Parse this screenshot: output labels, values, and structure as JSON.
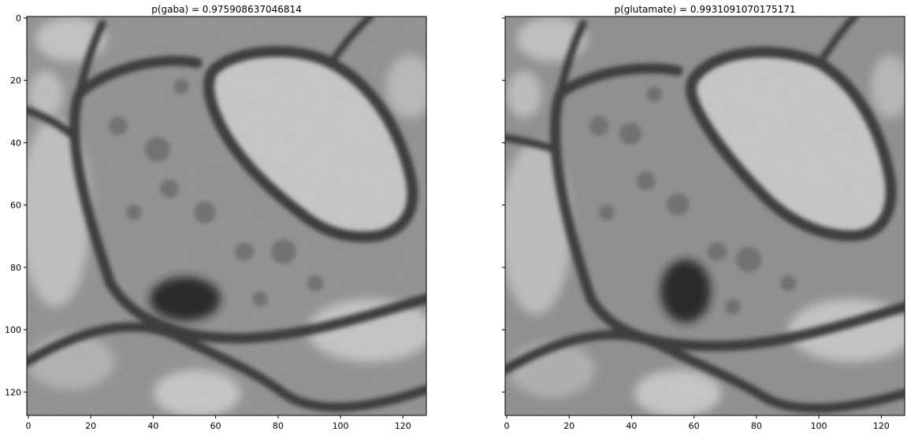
{
  "figure": {
    "panels": [
      {
        "title": "p(gaba) = 0.975908637046814",
        "x_ticks": [
          "0",
          "20",
          "40",
          "60",
          "80",
          "100",
          "120"
        ],
        "y_ticks": [
          "0",
          "20",
          "40",
          "60",
          "80",
          "100",
          "120"
        ],
        "shows_y_tick_labels": true
      },
      {
        "title": "p(glutamate) = 0.9931091070175171",
        "x_ticks": [
          "0",
          "20",
          "40",
          "60",
          "80",
          "100",
          "120"
        ],
        "y_ticks": [
          "0",
          "20",
          "40",
          "60",
          "80",
          "100",
          "120"
        ],
        "shows_y_tick_labels": false
      }
    ],
    "image_type": "grayscale electron micrograph",
    "colors": {
      "dark_membrane": "#2a2a2a",
      "mid_gray": "#8a8a8a",
      "light_lumen": "#c9c9c9"
    }
  }
}
